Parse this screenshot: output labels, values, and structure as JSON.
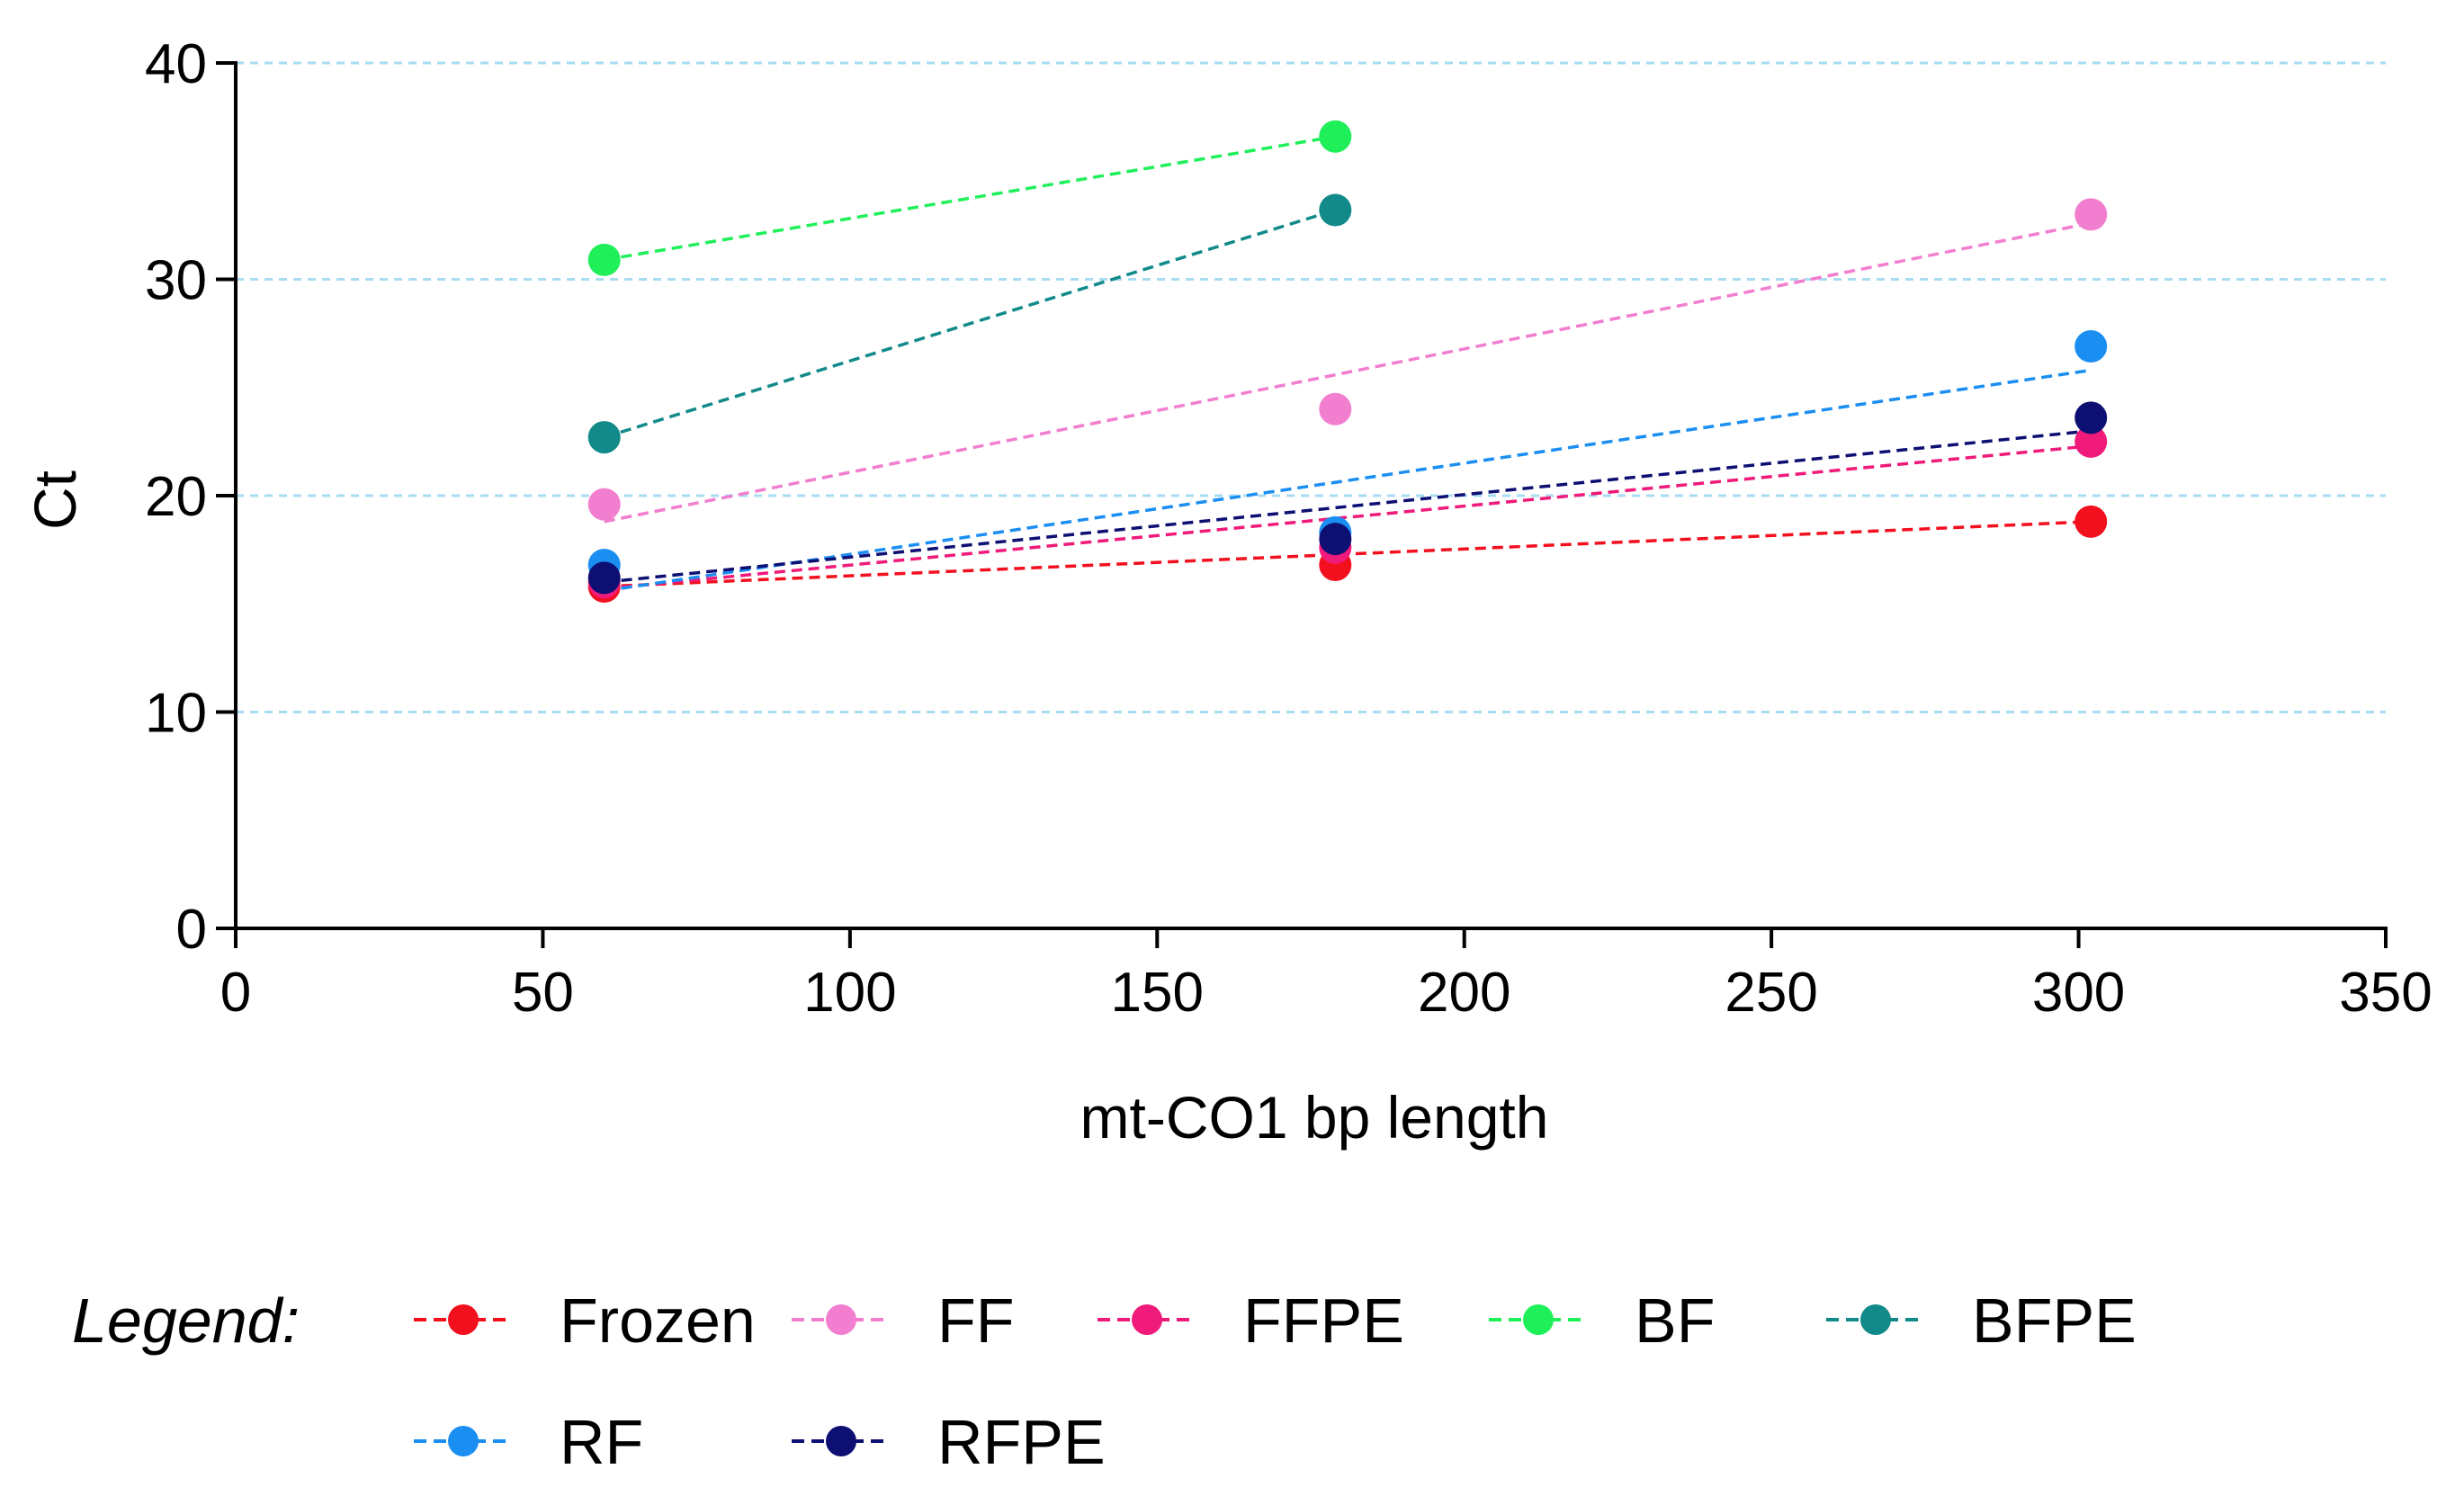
{
  "chart_data": {
    "type": "line",
    "xlabel": "mt-CO1 bp length",
    "ylabel": "Ct",
    "xlim": [
      0,
      350
    ],
    "ylim": [
      0,
      40
    ],
    "xticks": [
      "0",
      "50",
      "100",
      "150",
      "200",
      "250",
      "300",
      "350"
    ],
    "yticks": [
      "0",
      "10",
      "20",
      "30",
      "40"
    ],
    "grid": "horizontal dashed",
    "grid_color": "#a8dcf2",
    "legend_title": "Legend:",
    "legend_position": "bottom",
    "series": [
      {
        "name": "Frozen",
        "color": "#f2101f",
        "points": [
          [
            60,
            15.8
          ],
          [
            179,
            16.8
          ],
          [
            302,
            18.8
          ]
        ],
        "fit": [
          [
            60,
            15.8
          ],
          [
            302,
            18.8
          ]
        ]
      },
      {
        "name": "FF",
        "color": "#f27ecf",
        "points": [
          [
            60,
            19.6
          ],
          [
            179,
            24.0
          ],
          [
            302,
            33.0
          ]
        ],
        "fit": [
          [
            60,
            18.8
          ],
          [
            302,
            32.6
          ]
        ]
      },
      {
        "name": "FFPE",
        "color": "#ef1a7a",
        "points": [
          [
            60,
            16.0
          ],
          [
            179,
            17.6
          ],
          [
            302,
            22.5
          ]
        ],
        "fit": [
          [
            60,
            15.7
          ],
          [
            302,
            22.3
          ]
        ]
      },
      {
        "name": "BF",
        "color": "#1ff05a",
        "points": [
          [
            60,
            30.9
          ],
          [
            179,
            36.6
          ]
        ],
        "fit": [
          [
            60,
            30.9
          ],
          [
            179,
            36.6
          ]
        ]
      },
      {
        "name": "BFPE",
        "color": "#128a8a",
        "points": [
          [
            60,
            22.7
          ],
          [
            179,
            33.2
          ]
        ],
        "fit": [
          [
            60,
            22.7
          ],
          [
            179,
            33.2
          ]
        ]
      },
      {
        "name": "RF",
        "color": "#1b8ef2",
        "points": [
          [
            60,
            16.8
          ],
          [
            179,
            18.3
          ],
          [
            302,
            26.9
          ]
        ],
        "fit": [
          [
            60,
            15.6
          ],
          [
            302,
            25.8
          ]
        ]
      },
      {
        "name": "RFPE",
        "color": "#0e0f73",
        "points": [
          [
            60,
            16.2
          ],
          [
            179,
            18.0
          ],
          [
            302,
            23.6
          ]
        ],
        "fit": [
          [
            60,
            16.0
          ],
          [
            302,
            23.0
          ]
        ]
      }
    ]
  }
}
